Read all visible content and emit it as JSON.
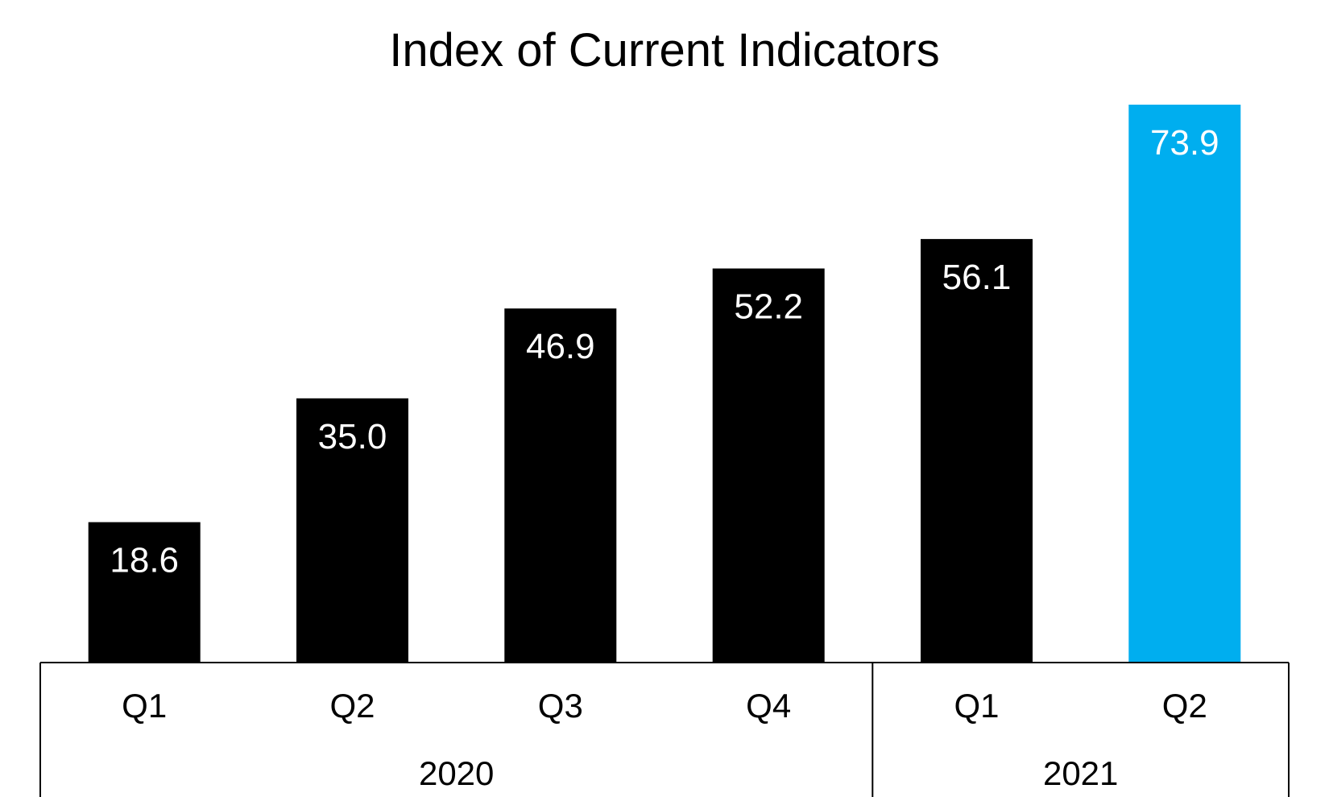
{
  "chart_data": {
    "type": "bar",
    "title": "Index of Current Indicators",
    "xlabel": "",
    "ylabel": "",
    "categories": [
      "Q1",
      "Q2",
      "Q3",
      "Q4",
      "Q1",
      "Q2"
    ],
    "groups": [
      {
        "label": "2020",
        "categories": [
          "Q1",
          "Q2",
          "Q3",
          "Q4"
        ]
      },
      {
        "label": "2021",
        "categories": [
          "Q1",
          "Q2"
        ]
      }
    ],
    "values": [
      18.6,
      35.0,
      46.9,
      52.2,
      56.1,
      73.9
    ],
    "value_labels": [
      "18.6",
      "35.0",
      "46.9",
      "52.2",
      "56.1",
      "73.9"
    ],
    "bar_colors": [
      "#000000",
      "#000000",
      "#000000",
      "#000000",
      "#000000",
      "#00AEEF"
    ],
    "ylim": [
      0,
      73.9
    ],
    "grid": false,
    "legend": "none"
  }
}
